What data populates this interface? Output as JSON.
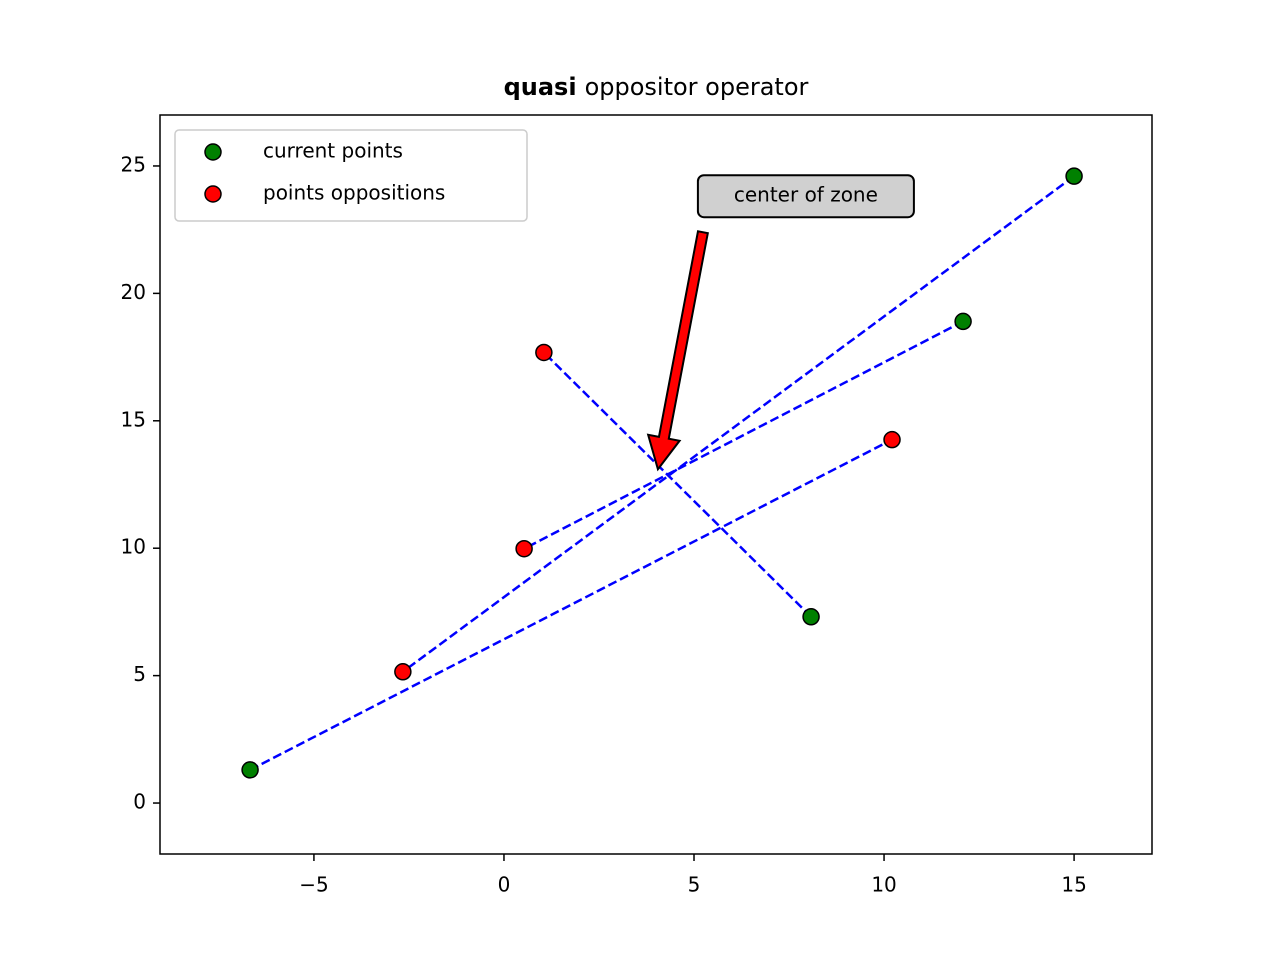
{
  "chart_data": {
    "type": "scatter",
    "title": [
      "quasi",
      "oppositor operator"
    ],
    "xlim": [
      -9.05,
      17.05
    ],
    "ylim": [
      -2,
      27
    ],
    "xticks": [
      {
        "value": -5,
        "label": "−5"
      },
      0,
      5,
      10,
      15
    ],
    "yticks": [
      0,
      5,
      10,
      15,
      20,
      25
    ],
    "series": [
      {
        "name": "current points",
        "color": "green",
        "x": [
          -6.68,
          15.0,
          12.08,
          8.08
        ],
        "y": [
          1.3,
          24.6,
          18.9,
          7.31
        ]
      },
      {
        "name": "points oppositions",
        "color": "red",
        "x": [
          10.21,
          -2.66,
          0.53,
          1.05
        ],
        "y": [
          14.26,
          5.15,
          9.98,
          17.68
        ]
      }
    ],
    "line_color": "blue",
    "legend": "upper left",
    "annotation": {
      "text": "center of zone",
      "xy": [
        4.05,
        13.1
      ],
      "color": "red"
    }
  }
}
